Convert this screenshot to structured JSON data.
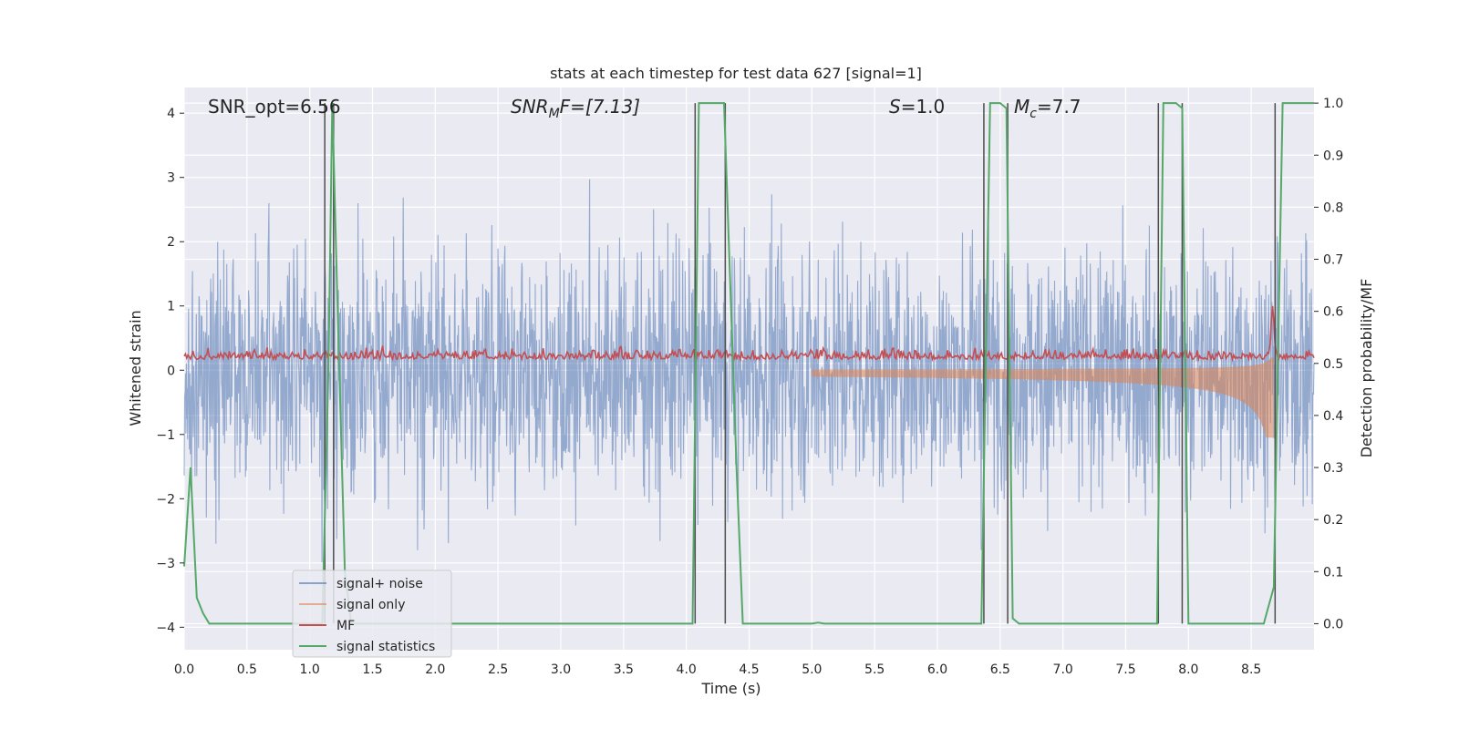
{
  "chart_data": {
    "type": "line",
    "title": "stats at each timestep for test data 627 [signal=1]",
    "xlabel": "Time (s)",
    "ylabel": "Whitened strain",
    "ylabel_right": "Detection probability/MF",
    "xlim": [
      0.0,
      9.0
    ],
    "ylim": [
      -4.35,
      4.4
    ],
    "ylim_right": [
      -0.05,
      1.03
    ],
    "xticks": [
      "0.0",
      "0.5",
      "1.0",
      "1.5",
      "2.0",
      "2.5",
      "3.0",
      "3.5",
      "4.0",
      "4.5",
      "5.0",
      "5.5",
      "6.0",
      "6.5",
      "7.0",
      "7.5",
      "8.0",
      "8.5"
    ],
    "yticks": [
      "4",
      "3",
      "2",
      "1",
      "0",
      "−1",
      "−2",
      "−3",
      "−4"
    ],
    "yticks_right": [
      "1.0",
      "0.9",
      "0.8",
      "0.7",
      "0.6",
      "0.5",
      "0.4",
      "0.3",
      "0.2",
      "0.1",
      "0.0"
    ],
    "annotations": {
      "snr_opt": "SNR_opt=6.56",
      "snr_mf_base": "SNR",
      "snr_mf_sub": "M",
      "snr_mf_tail": "F=[7.13]",
      "s_label": "S",
      "s_value": "=1.0",
      "mc_base": "M",
      "mc_sub": "c",
      "mc_value": "=7.7"
    },
    "grid": true,
    "legend_position": "lower-left",
    "series": [
      {
        "name": "signal+ noise",
        "color": "#4c72b0",
        "axis": "left",
        "kind": "noise",
        "amplitude_sd": 0.95,
        "x_range": [
          0.0,
          9.0
        ]
      },
      {
        "name": "signal only",
        "color": "#dd8452",
        "axis": "left",
        "kind": "chirp",
        "x_range": [
          0.0,
          8.68
        ],
        "merger_time": 8.68
      },
      {
        "name": "MF",
        "color": "#c44e52",
        "axis": "left",
        "kind": "mf",
        "baseline": 0.2,
        "peak_time": 8.67,
        "peak_value": 0.98
      },
      {
        "name": "signal statistics",
        "color": "#55a868",
        "axis": "right",
        "kind": "step",
        "x": [
          0.0,
          0.05,
          0.1,
          0.15,
          0.2,
          0.25,
          1.1,
          1.15,
          1.18,
          1.22,
          1.28,
          1.33,
          4.05,
          4.1,
          4.3,
          4.4,
          4.45,
          5.0,
          5.05,
          5.1,
          6.35,
          6.42,
          6.5,
          6.55,
          6.6,
          6.65,
          6.7,
          7.75,
          7.8,
          7.9,
          7.95,
          8.0,
          8.05,
          8.6,
          8.68,
          8.75,
          9.0
        ],
        "y": [
          0.11,
          0.3,
          0.05,
          0.02,
          0.0,
          0.0,
          0.0,
          0.5,
          1.0,
          0.62,
          0.1,
          0.0,
          0.0,
          1.0,
          1.0,
          0.3,
          0.0,
          0.0,
          0.002,
          0.0,
          0.0,
          1.0,
          1.0,
          0.99,
          0.01,
          0.0,
          0.0,
          0.0,
          1.0,
          1.0,
          0.99,
          0.0,
          0.0,
          0.0,
          0.07,
          1.0,
          1.0
        ]
      },
      {
        "name": "",
        "color": "#4d4d4d",
        "axis": "right",
        "kind": "vlines",
        "x": [
          1.12,
          1.19,
          4.07,
          4.31,
          6.37,
          6.56,
          7.76,
          7.95,
          8.69
        ],
        "y_range": [
          0.0,
          1.0
        ]
      }
    ]
  }
}
